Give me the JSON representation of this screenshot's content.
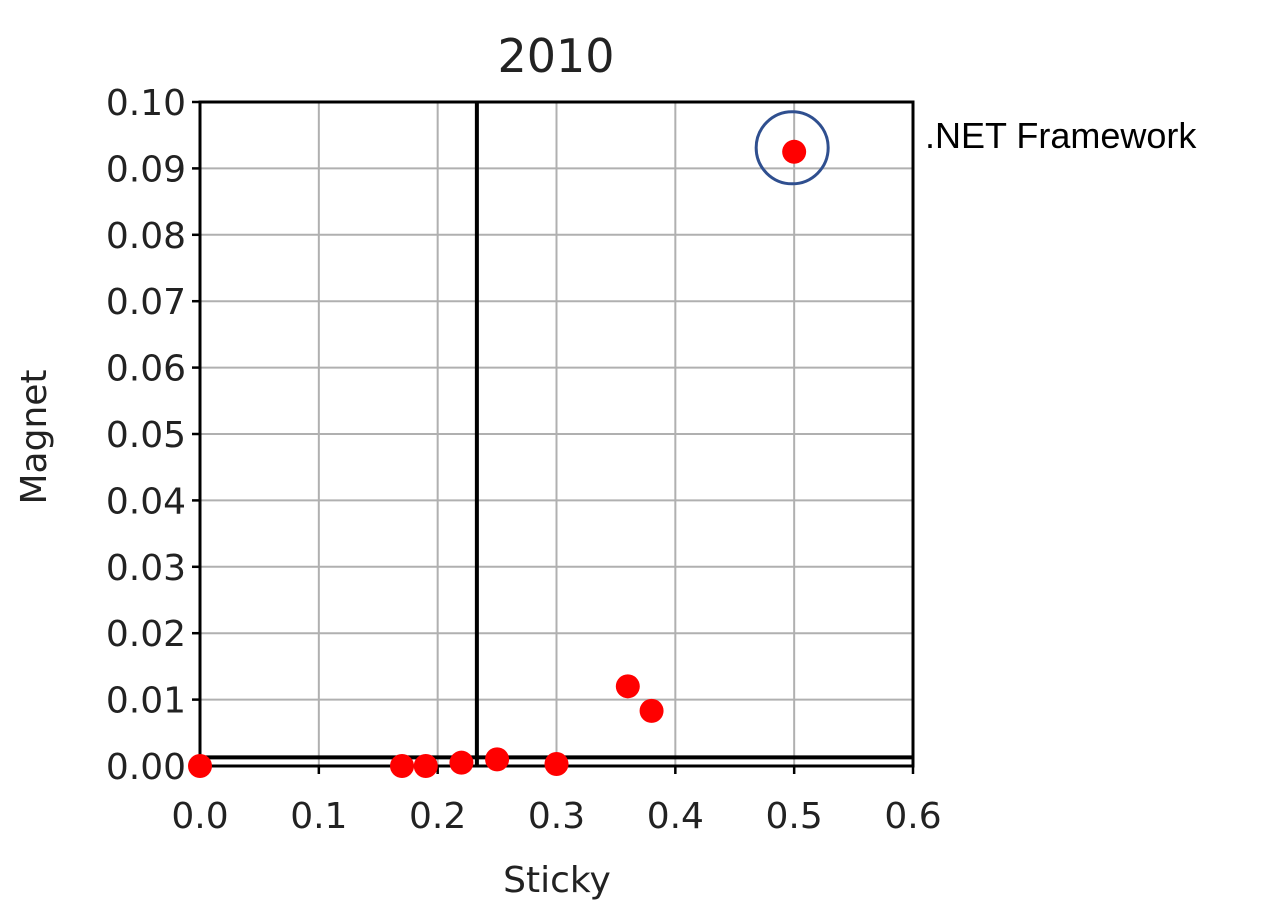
{
  "chart_data": {
    "type": "scatter",
    "title": "2010",
    "xlabel": "Sticky",
    "ylabel": "Magnet",
    "xlim": [
      0.0,
      0.6
    ],
    "ylim": [
      0.0,
      0.1
    ],
    "grid": true,
    "x_ticks": [
      "0.0",
      "0.1",
      "0.2",
      "0.3",
      "0.4",
      "0.5",
      "0.6"
    ],
    "y_ticks": [
      "0.00",
      "0.01",
      "0.02",
      "0.03",
      "0.04",
      "0.05",
      "0.06",
      "0.07",
      "0.08",
      "0.09",
      "0.10"
    ],
    "marker_color": "#ff0000",
    "points": [
      {
        "x": 0.0,
        "y": 0.0
      },
      {
        "x": 0.17,
        "y": 0.0
      },
      {
        "x": 0.19,
        "y": 0.0
      },
      {
        "x": 0.22,
        "y": 0.0005
      },
      {
        "x": 0.25,
        "y": 0.001
      },
      {
        "x": 0.3,
        "y": 0.0003
      },
      {
        "x": 0.36,
        "y": 0.012
      },
      {
        "x": 0.38,
        "y": 0.0083
      },
      {
        "x": 0.5,
        "y": 0.0925
      }
    ],
    "reference_lines": {
      "vertical_x": 0.233,
      "horizontal_y": 0.001
    },
    "annotation": {
      "text": ".NET Framework",
      "point_index": 8,
      "circle_color": "#2f4f8f"
    }
  }
}
